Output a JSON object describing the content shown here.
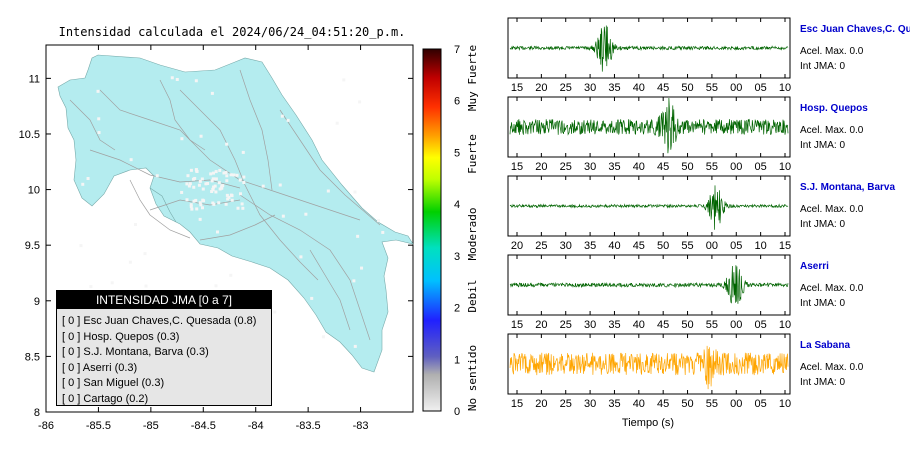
{
  "map": {
    "title": "Intensidad calculada el 2024/06/24_04:51:20_p.m.",
    "x_ticks": [
      "-86",
      "-85.5",
      "-85",
      "-84.5",
      "-84",
      "-83.5",
      "-83"
    ],
    "y_ticks": [
      "11",
      "10.5",
      "10",
      "9.5",
      "9",
      "8.5",
      "8"
    ],
    "xlim": [
      -86,
      -82.5
    ],
    "ylim": [
      8,
      11.3
    ],
    "land_color": "#b4ecef",
    "road_color": "#a0a0a0"
  },
  "legend": {
    "title": "INTENSIDAD JMA [0 a 7]",
    "items": [
      {
        "level": "[ 0 ]",
        "label": "Esc Juan Chaves,C. Quesada (0.8)"
      },
      {
        "level": "[ 0 ]",
        "label": "Hosp. Quepos (0.3)"
      },
      {
        "level": "[ 0 ]",
        "label": "S.J. Montana, Barva (0.3)"
      },
      {
        "level": "[ 0 ]",
        "label": "Aserri (0.3)"
      },
      {
        "level": "[ 0 ]",
        "label": "San Miguel (0.3)"
      },
      {
        "level": "[ 0 ]",
        "label": "Cartago (0.2)"
      }
    ]
  },
  "colorbar": {
    "ticks": [
      "7",
      "6",
      "5",
      "4",
      "3",
      "2",
      "1",
      "0"
    ],
    "labels": [
      "Muy Fuerte",
      "Fuerte",
      "Moderado",
      "Debil",
      "No sentido"
    ],
    "range": [
      0,
      7
    ]
  },
  "chart_data": {
    "type": "line",
    "xlabel": "Tiempo (s)",
    "series": [
      {
        "name": "Esc Juan Chaves,C. Qu",
        "acel_label": "Acel. Max. 0.0",
        "int_label": "Int JMA: 0",
        "color": "#006400",
        "ticks": [
          "15",
          "20",
          "25",
          "30",
          "35",
          "40",
          "45",
          "50",
          "55",
          "00",
          "05",
          "10"
        ],
        "burst_center": 0.34,
        "burst_amp": 0.9,
        "noise": 0.06
      },
      {
        "name": "Hosp. Quepos",
        "acel_label": "Acel. Max. 0.0",
        "int_label": "Int JMA: 0",
        "color": "#006400",
        "ticks": [
          "15",
          "20",
          "25",
          "30",
          "35",
          "40",
          "45",
          "50",
          "55",
          "00",
          "05",
          "10"
        ],
        "burst_center": 0.57,
        "burst_amp": 0.85,
        "noise": 0.28
      },
      {
        "name": "S.J. Montana, Barva",
        "acel_label": "Acel. Max. 0.0",
        "int_label": "Int JMA: 0",
        "color": "#006400",
        "ticks": [
          "20",
          "25",
          "30",
          "35",
          "40",
          "45",
          "50",
          "55",
          "00",
          "05",
          "10",
          "15"
        ],
        "burst_center": 0.74,
        "burst_amp": 0.85,
        "noise": 0.05
      },
      {
        "name": "Aserri",
        "acel_label": "Acel. Max. 0.0",
        "int_label": "Int JMA: 0",
        "color": "#006400",
        "ticks": [
          "15",
          "20",
          "25",
          "30",
          "35",
          "40",
          "45",
          "50",
          "55",
          "00",
          "05",
          "10"
        ],
        "burst_center": 0.81,
        "burst_amp": 0.95,
        "noise": 0.07
      },
      {
        "name": "La Sabana",
        "acel_label": "Acel. Max. 0.0",
        "int_label": "Int JMA: 0",
        "color": "#ffa500",
        "ticks": [
          "15",
          "20",
          "25",
          "30",
          "35",
          "40",
          "45",
          "50",
          "55",
          "00",
          "05",
          "10"
        ],
        "burst_center": 0.72,
        "burst_amp": 0.55,
        "noise": 0.4
      }
    ]
  }
}
